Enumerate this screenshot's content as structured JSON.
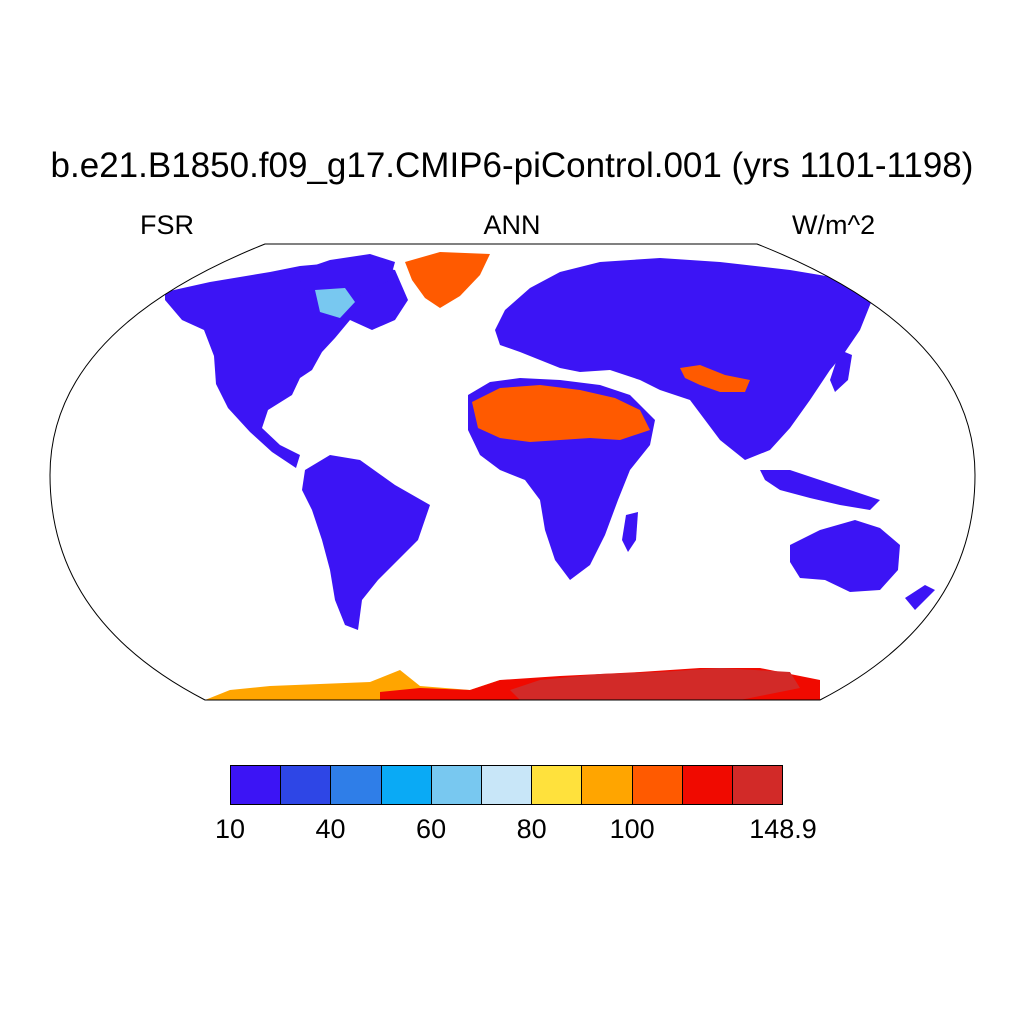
{
  "title": "b.e21.B1850.f09_g17.CMIP6-piControl.001 (yrs 1101-1198)",
  "left_label": "FSR",
  "center_label": "ANN",
  "right_label": "W/m^2",
  "colorbar": {
    "colors": [
      "#3c14f5",
      "#2e46e6",
      "#2f7ee8",
      "#0aaaf5",
      "#78c8f0",
      "#c8e6f8",
      "#ffe13c",
      "#ffa500",
      "#ff5a00",
      "#f00a00",
      "#d22a28"
    ],
    "tick_labels": [
      "10",
      "40",
      "60",
      "80",
      "100",
      "148.9"
    ]
  },
  "map": {
    "projection": "Robinson",
    "land_color": "#3c14f5",
    "ocean_color": "#ffffff",
    "sahara_color": "#ff5a00",
    "greenland_color": "#ff5a00",
    "antarctica_colors": [
      "#ffa500",
      "#f00a00",
      "#d22a28"
    ],
    "tibet_color": "#ff5a00"
  }
}
